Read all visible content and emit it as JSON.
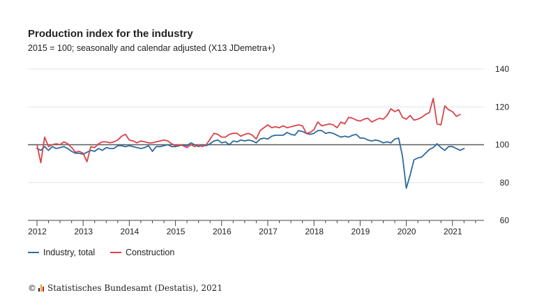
{
  "header": {
    "title": "Production index for the industry",
    "subtitle": "2015 = 100; seasonally and calendar adjusted (X13 JDemetra+)"
  },
  "footer": {
    "copyright_symbol": "©",
    "source": "Statistisches Bundesamt (Destatis), 2021"
  },
  "chart_data": {
    "type": "line",
    "title": "Production index for the industry",
    "subtitle": "2015 = 100; seasonally and calendar adjusted (X13 JDemetra+)",
    "xlabel": "",
    "ylabel": "",
    "x_start": "2012-01",
    "x_ticks": [
      "2012",
      "2013",
      "2014",
      "2015",
      "2016",
      "2017",
      "2018",
      "2019",
      "2020",
      "2021"
    ],
    "ylim": [
      60,
      140
    ],
    "y_ticks": [
      "60",
      "80",
      "100",
      "120",
      "140"
    ],
    "reference_line": 100,
    "grid": "horizontal",
    "legend_position": "bottom-left",
    "series": [
      {
        "name": "Industry, total",
        "color": "#2c6a9e",
        "values": [
          98,
          97,
          99,
          97,
          99,
          98,
          98.5,
          99,
          98,
          96.5,
          95.5,
          95.5,
          95,
          96,
          97,
          96.5,
          98,
          97,
          98.5,
          98,
          98,
          99.5,
          99.5,
          99,
          99.5,
          99,
          98.5,
          98,
          98.5,
          99.5,
          96.5,
          99,
          99,
          99.5,
          100,
          99,
          99,
          99.5,
          100,
          99.5,
          101,
          100,
          99,
          100,
          99.5,
          100.5,
          102,
          102.5,
          101,
          101.5,
          100,
          102,
          101.5,
          102.5,
          102,
          102.5,
          102,
          101,
          103,
          103.5,
          103,
          104.5,
          105,
          105,
          105,
          106.5,
          105.5,
          105,
          107.5,
          107,
          106,
          105.5,
          106,
          107.5,
          107.5,
          106,
          106.5,
          106,
          105,
          104,
          104.5,
          104,
          105,
          105.5,
          103.5,
          103.5,
          102.5,
          102,
          102.5,
          102,
          101,
          101.5,
          101,
          103,
          103.5,
          94,
          77,
          84,
          92,
          93,
          93.5,
          95.5,
          97.5,
          98.5,
          100.5,
          98.5,
          97,
          99,
          99,
          98,
          97,
          98
        ]
      },
      {
        "name": "Construction",
        "color": "#d9434a",
        "values": [
          100,
          90.5,
          104,
          99,
          100,
          100.5,
          100,
          101.5,
          100.5,
          98.5,
          96,
          96.5,
          95.5,
          91,
          99,
          98.5,
          100.5,
          101.5,
          101.5,
          101,
          101.5,
          102.5,
          104.5,
          105.5,
          102.5,
          102,
          101,
          102,
          101.5,
          101,
          101,
          101.5,
          102,
          102.5,
          102,
          100.5,
          99.5,
          100,
          99.5,
          98.5,
          100,
          99,
          100,
          99,
          100,
          103,
          106,
          105.5,
          104,
          104,
          105.5,
          106,
          106,
          104.5,
          105.5,
          106,
          105,
          103,
          107.5,
          109,
          110.5,
          109,
          109.5,
          109,
          110,
          109,
          109.5,
          110,
          110.5,
          110,
          106,
          106.5,
          108,
          112,
          110,
          110.5,
          111,
          110.5,
          109,
          112,
          111,
          114.5,
          114,
          113,
          112.5,
          113.5,
          114,
          112,
          113,
          114,
          113.5,
          115.5,
          119,
          117.5,
          118.5,
          114.5,
          113.5,
          115.5,
          113,
          113.5,
          114.5,
          116,
          117,
          124.5,
          111,
          110.5,
          120.5,
          118.5,
          117.5,
          115,
          116
        ]
      }
    ]
  }
}
